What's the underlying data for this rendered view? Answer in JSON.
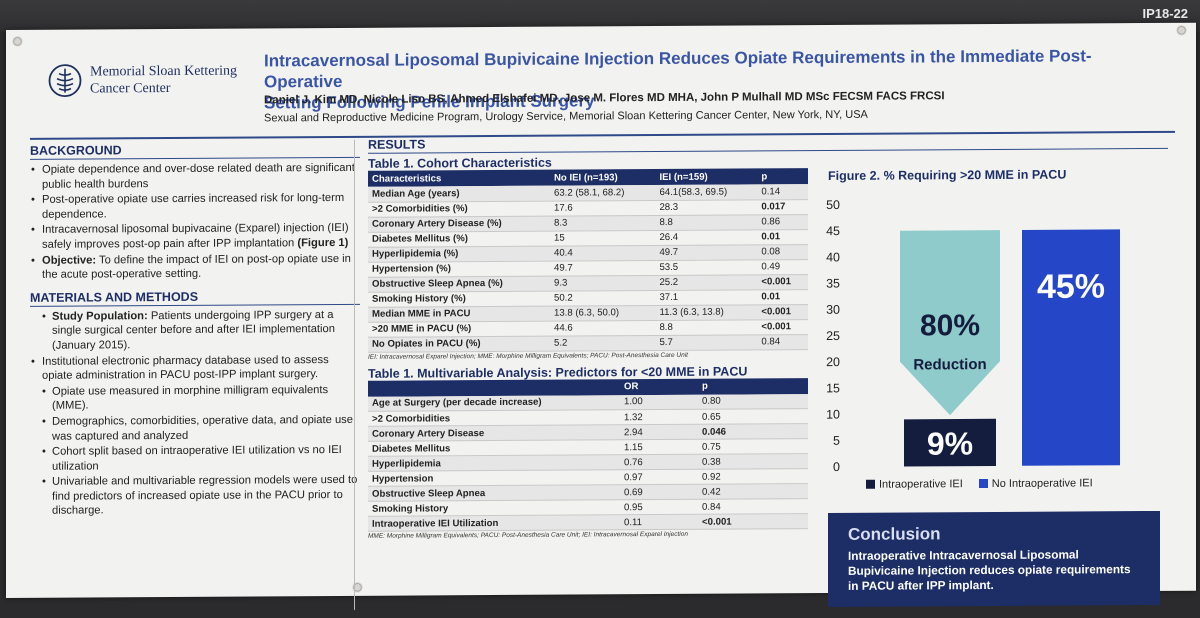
{
  "poster_id": "IP18-22",
  "logo": {
    "line1": "Memorial Sloan Kettering",
    "line2": "Cancer Center"
  },
  "title_line1": "Intracavernosal Liposomal Bupivicaine Injection Reduces Opiate Requirements in the Immediate Post-Operative",
  "title_line2": "Setting Following Penile Implant Surgery",
  "authors": "Daniel J. Kim MD, Nicole Liso BS, Ahmed Elshafei MD, Jose M. Flores MD MHA, John P Mulhall MD MSc FECSM FACS FRCSI",
  "affiliation": "Sexual and Reproductive Medicine Program, Urology Service, Memorial Sloan Kettering Cancer Center, New York, NY, USA",
  "background": {
    "heading": "BACKGROUND",
    "b1": "Opiate dependence and over-dose related death are significant public health burdens",
    "b2": "Post-operative opiate use carries increased risk for long-term dependence.",
    "b3": "Intracavernosal liposomal bupivacaine (Exparel) injection (IEI) safely improves post-op pain after IPP implantation ",
    "b3_bold": "(Figure 1)",
    "b4_label": "Objective:",
    "b4": " To define the impact of IEI on post-op opiate use in the acute post-operative setting."
  },
  "methods": {
    "heading": "MATERIALS AND METHODS",
    "m1_label": "Study Population:",
    "m1": " Patients undergoing IPP surgery at a single surgical center before and after IEI implementation (January 2015).",
    "m2": "Institutional electronic pharmacy database used to assess opiate administration in PACU post-IPP implant surgery.",
    "m3": "Opiate use measured in morphine milligram equivalents (MME).",
    "m4": "Demographics, comorbidities, operative data, and opiate use was captured and analyzed",
    "m5": "Cohort split based on intraoperative IEI utilization vs no IEI utilization",
    "m6": "Univariable and multivariable regression models were used to find predictors of increased opiate use in the PACU prior to discharge."
  },
  "results_heading": "RESULTS",
  "table1": {
    "title": "Table 1. Cohort Characteristics",
    "headers": [
      "Characteristics",
      "No IEI (n=193)",
      "IEI  (n=159)",
      "p"
    ],
    "rows": [
      [
        "Median Age (years)",
        "63.2 (58.1, 68.2)",
        "64.1(58.3, 69.5)",
        "0.14"
      ],
      [
        ">2 Comorbidities (%)",
        "17.6",
        "28.3",
        "0.017"
      ],
      [
        "Coronary Artery Disease (%)",
        "8.3",
        "8.8",
        "0.86"
      ],
      [
        "Diabetes Mellitus (%)",
        "15",
        "26.4",
        "0.01"
      ],
      [
        "Hyperlipidemia (%)",
        "40.4",
        "49.7",
        "0.08"
      ],
      [
        "Hypertension (%)",
        "49.7",
        "53.5",
        "0.49"
      ],
      [
        "Obstructive Sleep Apnea (%)",
        "9.3",
        "25.2",
        "<0.001"
      ],
      [
        "Smoking History (%)",
        "50.2",
        "37.1",
        "0.01"
      ],
      [
        "Median MME in PACU",
        "13.8 (6.3, 50.0)",
        "11.3 (6.3, 13.8)",
        "<0.001"
      ],
      [
        ">20 MME in PACU (%)",
        "44.6",
        "8.8",
        "<0.001"
      ],
      [
        "No Opiates in PACU (%)",
        "5.2",
        "5.7",
        "0.84"
      ]
    ],
    "note": "IEI: Intracavernosal Exparel Injection; MME: Morphine Milligram Equivalents; PACU: Post-Anesthesia Care Unit"
  },
  "table2": {
    "title": "Table 1. Multivariable Analysis: Predictors for <20 MME in PACU",
    "headers": [
      "",
      "OR",
      "p"
    ],
    "rows": [
      [
        "Age at Surgery (per decade increase)",
        "1.00",
        "0.80"
      ],
      [
        ">2 Comorbidities",
        "1.32",
        "0.65"
      ],
      [
        "Coronary Artery Disease",
        "2.94",
        "0.046"
      ],
      [
        "Diabetes Mellitus",
        "1.15",
        "0.75"
      ],
      [
        "Hyperlipidemia",
        "0.76",
        "0.38"
      ],
      [
        "Hypertension",
        "0.97",
        "0.92"
      ],
      [
        "Obstructive Sleep Apnea",
        "0.69",
        "0.42"
      ],
      [
        "Smoking History",
        "0.95",
        "0.84"
      ],
      [
        "Intraoperative IEI Utilization",
        "0.11",
        "<0.001"
      ]
    ],
    "note": "MME: Morphine Milligram Equivalents; PACU: Post-Anesthesia Care Unit; IEI: Intracavernosal Exparel Injection"
  },
  "chart_data": {
    "type": "bar",
    "title": "Figure 2. % Requiring >20 MME in PACU",
    "categories": [
      "Intraoperative IEI",
      "No Intraoperative IEI"
    ],
    "series": [
      {
        "values": [
          9,
          45
        ]
      }
    ],
    "value_labels": [
      "9%",
      "45%"
    ],
    "arrow_annotation_value": "80%",
    "arrow_annotation_text": "Reduction",
    "y_ticks": [
      0,
      5,
      10,
      15,
      20,
      25,
      30,
      35,
      40,
      45,
      50
    ],
    "ylim": [
      0,
      50
    ],
    "legend": [
      "Intraoperative IEI",
      "No Intraoperative IEI"
    ],
    "legend_placement": "bottom",
    "colors": {
      "iei": "#151d3f",
      "no_iei": "#2547c7",
      "arrow": "#8fcbcb"
    }
  },
  "conclusion": {
    "heading": "Conclusion",
    "text": "Intraoperative Intracavernosal Liposomal Bupivicaine Injection  reduces opiate requirements in PACU after IPP implant."
  }
}
